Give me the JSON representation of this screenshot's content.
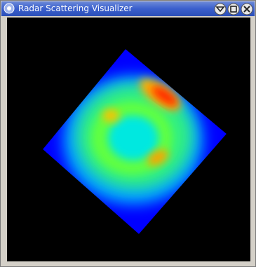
{
  "window": {
    "title": "Radar Scattering Visualizer"
  }
}
